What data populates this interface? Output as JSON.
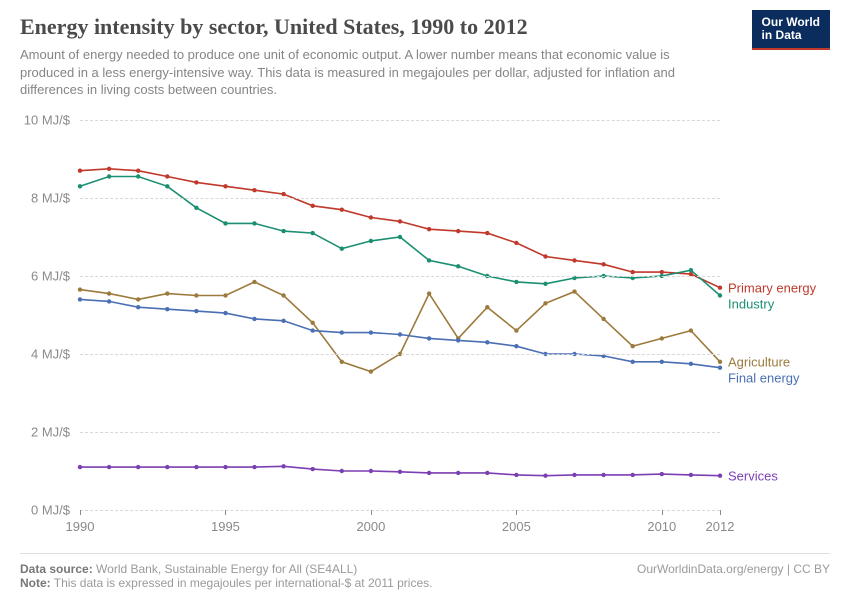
{
  "header": {
    "title": "Energy intensity by sector, United States, 1990 to 2012",
    "subtitle": "Amount of energy needed to produce one unit of economic output. A lower number means that economic value is produced in a less energy-intensive way. This data is measured in megajoules per dollar, adjusted for inflation and differences in living costs between countries.",
    "logo_line1": "Our World",
    "logo_line2": "in Data"
  },
  "chart": {
    "type": "line",
    "x_start": 1990,
    "x_end": 2012,
    "y_min": 0,
    "y_max": 10,
    "y_ticks": [
      0,
      2,
      4,
      6,
      8,
      10
    ],
    "y_tick_labels": [
      "0 MJ/$",
      "2 MJ/$",
      "4 MJ/$",
      "6 MJ/$",
      "8 MJ/$",
      "10 MJ/$"
    ],
    "x_ticks": [
      1990,
      1995,
      2000,
      2005,
      2010,
      2012
    ],
    "grid_color": "#d8d8d8",
    "background_color": "#ffffff",
    "line_width": 1.6,
    "marker_radius": 2.2,
    "label_fontsize": 13,
    "axis_label_color": "#8a8a8a",
    "series": [
      {
        "name": "Primary energy",
        "color": "#c0392b",
        "label": "Primary energy",
        "y": [
          8.7,
          8.75,
          8.7,
          8.55,
          8.4,
          8.3,
          8.2,
          8.1,
          7.8,
          7.7,
          7.5,
          7.4,
          7.2,
          7.15,
          7.1,
          6.85,
          6.5,
          6.4,
          6.3,
          6.1,
          6.1,
          6.05,
          5.7
        ]
      },
      {
        "name": "Industry",
        "color": "#1a8f72",
        "label": "Industry",
        "y": [
          8.3,
          8.55,
          8.55,
          8.3,
          7.75,
          7.35,
          7.35,
          7.15,
          7.1,
          6.7,
          6.9,
          7.0,
          6.4,
          6.25,
          6.0,
          5.85,
          5.8,
          5.95,
          6.0,
          5.95,
          6.0,
          6.15,
          5.5
        ]
      },
      {
        "name": "Agriculture",
        "color": "#9c7a3c",
        "label": "Agriculture",
        "y": [
          5.65,
          5.55,
          5.4,
          5.55,
          5.5,
          5.5,
          5.85,
          5.5,
          4.8,
          3.8,
          3.55,
          4.0,
          5.55,
          4.4,
          5.2,
          4.6,
          5.3,
          5.6,
          4.9,
          4.2,
          4.4,
          4.6,
          3.8
        ]
      },
      {
        "name": "Final energy",
        "color": "#4a6fb3",
        "label": "Final energy",
        "y": [
          5.4,
          5.35,
          5.2,
          5.15,
          5.1,
          5.05,
          4.9,
          4.85,
          4.6,
          4.55,
          4.55,
          4.5,
          4.4,
          4.35,
          4.3,
          4.2,
          4.0,
          4.0,
          3.95,
          3.8,
          3.8,
          3.75,
          3.65
        ]
      },
      {
        "name": "Services",
        "color": "#7b3fb3",
        "label": "Services",
        "y": [
          1.1,
          1.1,
          1.1,
          1.1,
          1.1,
          1.1,
          1.1,
          1.12,
          1.05,
          1.0,
          1.0,
          0.98,
          0.95,
          0.95,
          0.95,
          0.9,
          0.88,
          0.9,
          0.9,
          0.9,
          0.92,
          0.9,
          0.88
        ]
      }
    ]
  },
  "footer": {
    "source_label": "Data source:",
    "source_text": "World Bank, Sustainable Energy for All (SE4ALL)",
    "note_label": "Note:",
    "note_text": "This data is expressed in megajoules per international-$ at 2011 prices.",
    "right_text": "OurWorldinData.org/energy | CC BY"
  }
}
